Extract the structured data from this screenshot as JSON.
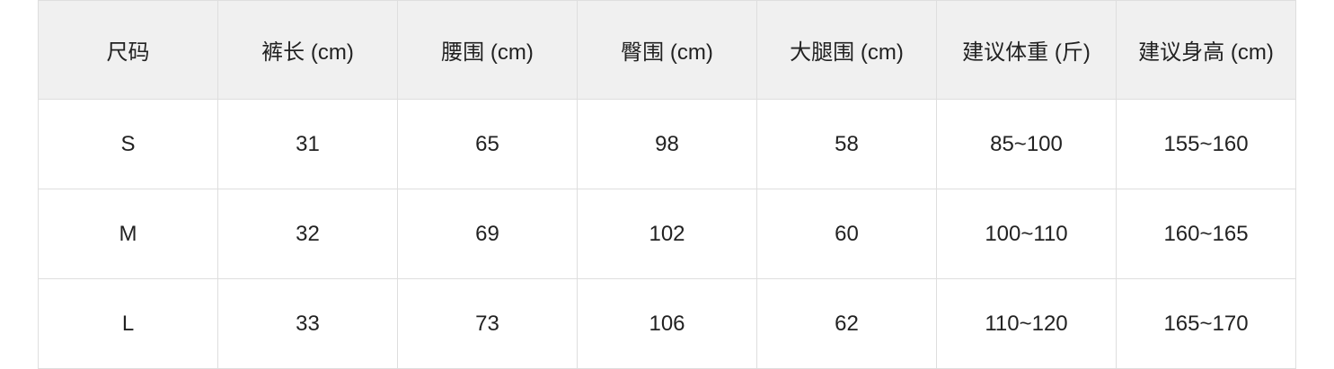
{
  "table": {
    "header": [
      "尺码",
      "裤长 (cm)",
      "腰围 (cm)",
      "臀围 (cm)",
      "大腿围 (cm)",
      "建议体重 (斤)",
      "建议身高 (cm)"
    ],
    "rows": [
      [
        "S",
        "31",
        "65",
        "98",
        "58",
        "85~100",
        "155~160"
      ],
      [
        "M",
        "32",
        "69",
        "102",
        "60",
        "100~110",
        "160~165"
      ],
      [
        "L",
        "33",
        "73",
        "106",
        "62",
        "110~120",
        "165~170"
      ]
    ]
  }
}
